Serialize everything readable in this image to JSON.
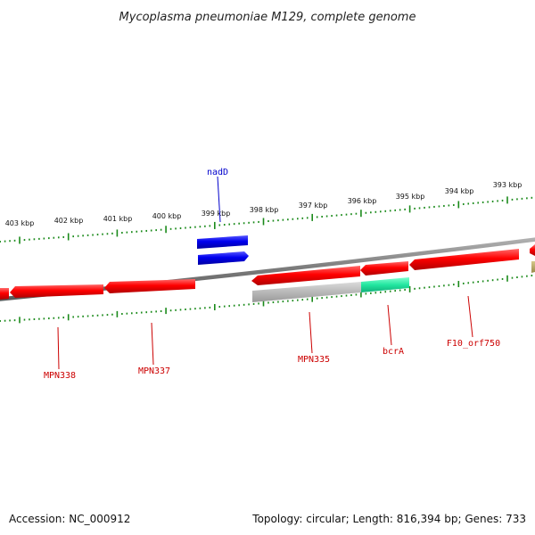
{
  "title": "Mycoplasma pneumoniae M129, complete genome",
  "footer": {
    "accession": "Accession: NC_000912",
    "summary": "Topology: circular; Length: 816,394 bp; Genes: 733"
  },
  "colors": {
    "tick": "#1a8a1a",
    "backbone": "#7f7f7f",
    "gene_red": "#ee0000",
    "gene_blue": "#0000dd",
    "gene_grey": "#aaaaaa",
    "gene_teal": "#22dd99",
    "gene_olive": "#aa9955",
    "label_red": "#cc0000",
    "label_blue": "#0000cc"
  },
  "ticks": [
    "403 kbp",
    "402 kbp",
    "401 kbp",
    "400 kbp",
    "399 kbp",
    "398 kbp",
    "397 kbp",
    "396 kbp",
    "395 kbp",
    "394 kbp",
    "393 kbp"
  ],
  "genes": [
    {
      "id": "MPN338"
    },
    {
      "id": "MPN337"
    },
    {
      "id": "MPN335"
    },
    {
      "id": "bcrA"
    },
    {
      "id": "F10_orf750"
    },
    {
      "id": "nadD"
    }
  ]
}
